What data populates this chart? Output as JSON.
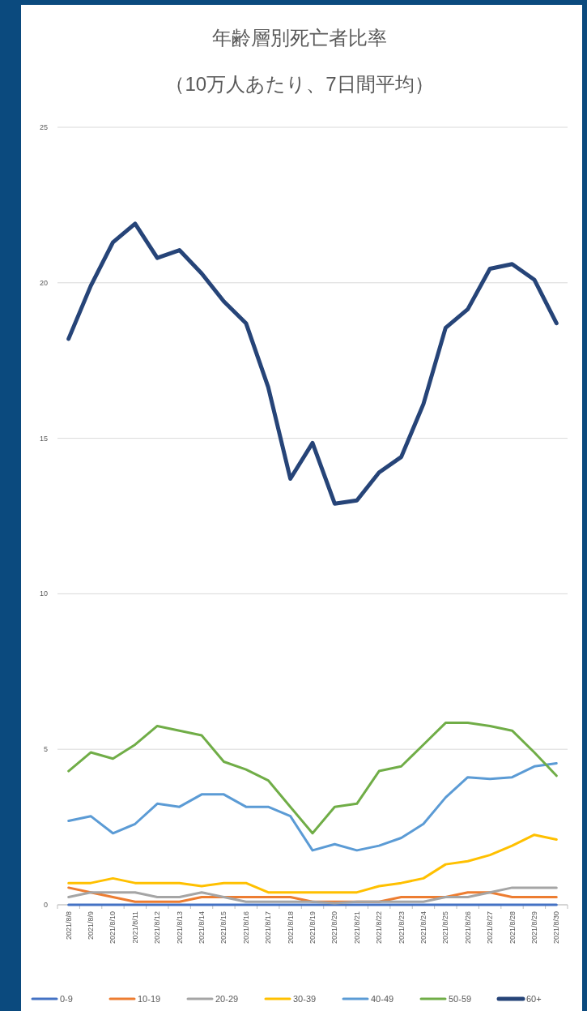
{
  "chart_data": {
    "type": "line",
    "title": "年齢層別死亡者比率",
    "subtitle": "（10万人あたり、7日間平均）",
    "categories": [
      "2021/8/8",
      "2021/8/9",
      "2021/8/10",
      "2021/8/11",
      "2021/8/12",
      "2021/8/13",
      "2021/8/14",
      "2021/8/15",
      "2021/8/16",
      "2021/8/17",
      "2021/8/18",
      "2021/8/19",
      "2021/8/20",
      "2021/8/21",
      "2021/8/22",
      "2021/8/23",
      "2021/8/24",
      "2021/8/25",
      "2021/8/26",
      "2021/8/27",
      "2021/8/28",
      "2021/8/29",
      "2021/8/30"
    ],
    "series": [
      {
        "name": "0-9",
        "color": "#4472c4",
        "values": [
          0,
          0,
          0,
          0,
          0,
          0,
          0,
          0,
          0,
          0,
          0,
          0,
          0,
          0,
          0,
          0,
          0,
          0,
          0,
          0,
          0,
          0,
          0
        ]
      },
      {
        "name": "10-19",
        "color": "#ed7d31",
        "values": [
          0.55,
          0.4,
          0.25,
          0.1,
          0.1,
          0.1,
          0.25,
          0.25,
          0.25,
          0.25,
          0.25,
          0.1,
          0.1,
          0.1,
          0.1,
          0.25,
          0.25,
          0.25,
          0.4,
          0.4,
          0.25,
          0.25,
          0.25
        ]
      },
      {
        "name": "20-29",
        "color": "#a5a5a5",
        "values": [
          0.25,
          0.4,
          0.4,
          0.4,
          0.25,
          0.25,
          0.4,
          0.25,
          0.1,
          0.1,
          0.1,
          0.1,
          0.05,
          0.1,
          0.1,
          0.1,
          0.1,
          0.25,
          0.25,
          0.4,
          0.55,
          0.55,
          0.55
        ]
      },
      {
        "name": "30-39",
        "color": "#ffc000",
        "values": [
          0.7,
          0.7,
          0.85,
          0.7,
          0.7,
          0.7,
          0.6,
          0.7,
          0.7,
          0.4,
          0.4,
          0.4,
          0.4,
          0.4,
          0.6,
          0.7,
          0.85,
          1.3,
          1.4,
          1.6,
          1.9,
          2.25,
          2.1
        ]
      },
      {
        "name": "40-49",
        "color": "#5b9bd5",
        "values": [
          2.7,
          2.85,
          2.3,
          2.6,
          3.25,
          3.15,
          3.55,
          3.55,
          3.15,
          3.15,
          2.85,
          1.75,
          1.95,
          1.75,
          1.9,
          2.15,
          2.6,
          3.45,
          4.1,
          4.05,
          4.1,
          4.45,
          4.55
        ]
      },
      {
        "name": "50-59",
        "color": "#70ad47",
        "values": [
          4.3,
          4.9,
          4.7,
          5.15,
          5.75,
          5.6,
          5.45,
          4.6,
          4.35,
          4.0,
          3.15,
          2.3,
          3.15,
          3.25,
          4.3,
          4.45,
          5.15,
          5.85,
          5.85,
          5.75,
          5.6,
          4.9,
          4.15
        ]
      },
      {
        "name": "60+",
        "color": "#264478",
        "values": [
          18.2,
          19.9,
          21.3,
          21.9,
          20.8,
          21.05,
          20.3,
          19.4,
          18.7,
          16.65,
          13.7,
          14.85,
          12.9,
          13.0,
          13.9,
          14.4,
          16.1,
          18.55,
          19.15,
          20.45,
          20.6,
          20.1,
          18.7
        ]
      }
    ],
    "ylim": [
      0,
      25
    ],
    "yticks": [
      0,
      5,
      10,
      15,
      20,
      25
    ],
    "grid": "y",
    "legend": "bottom"
  }
}
